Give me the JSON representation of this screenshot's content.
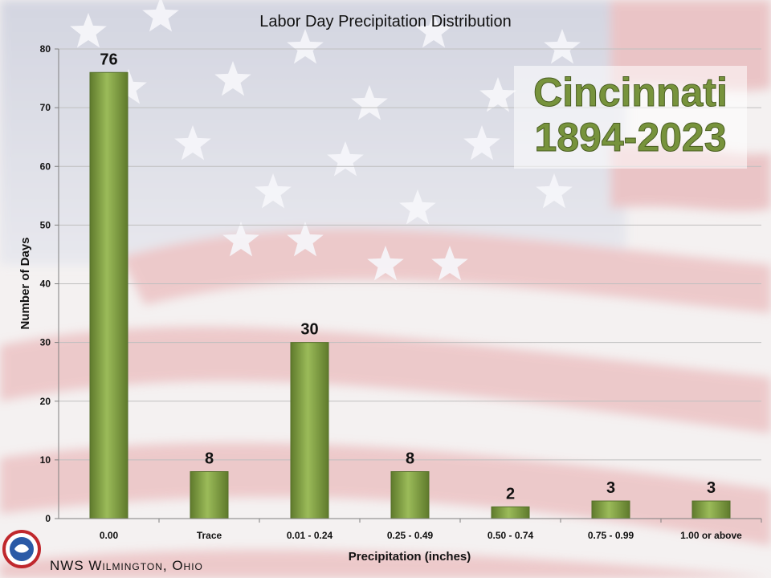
{
  "chart_data": {
    "type": "bar",
    "title": "Labor Day Precipitation Distribution",
    "xlabel": "Precipitation (inches)",
    "ylabel": "Number of Days",
    "categories": [
      "0.00",
      "Trace",
      "0.01 - 0.24",
      "0.25 - 0.49",
      "0.50 - 0.74",
      "0.75 - 0.99",
      "1.00 or above"
    ],
    "values": [
      76,
      8,
      30,
      8,
      2,
      3,
      3
    ],
    "ylim": [
      0,
      80
    ],
    "yticks": [
      0,
      10,
      20,
      30,
      40,
      50,
      60,
      70,
      80
    ],
    "grid": true,
    "legend": "none",
    "annotation": {
      "line1": "Cincinnati",
      "line2": "1894-2023"
    },
    "colors": {
      "bar": "#77933c",
      "bar_highlight": "#9bbb59",
      "annotation_text": "#77933c",
      "flag_red": "#d9868a",
      "flag_blue": "#6f7fa8"
    }
  },
  "footer": {
    "credit": "NWS Wilmington, Ohio",
    "logo": "nws-logo-icon"
  }
}
